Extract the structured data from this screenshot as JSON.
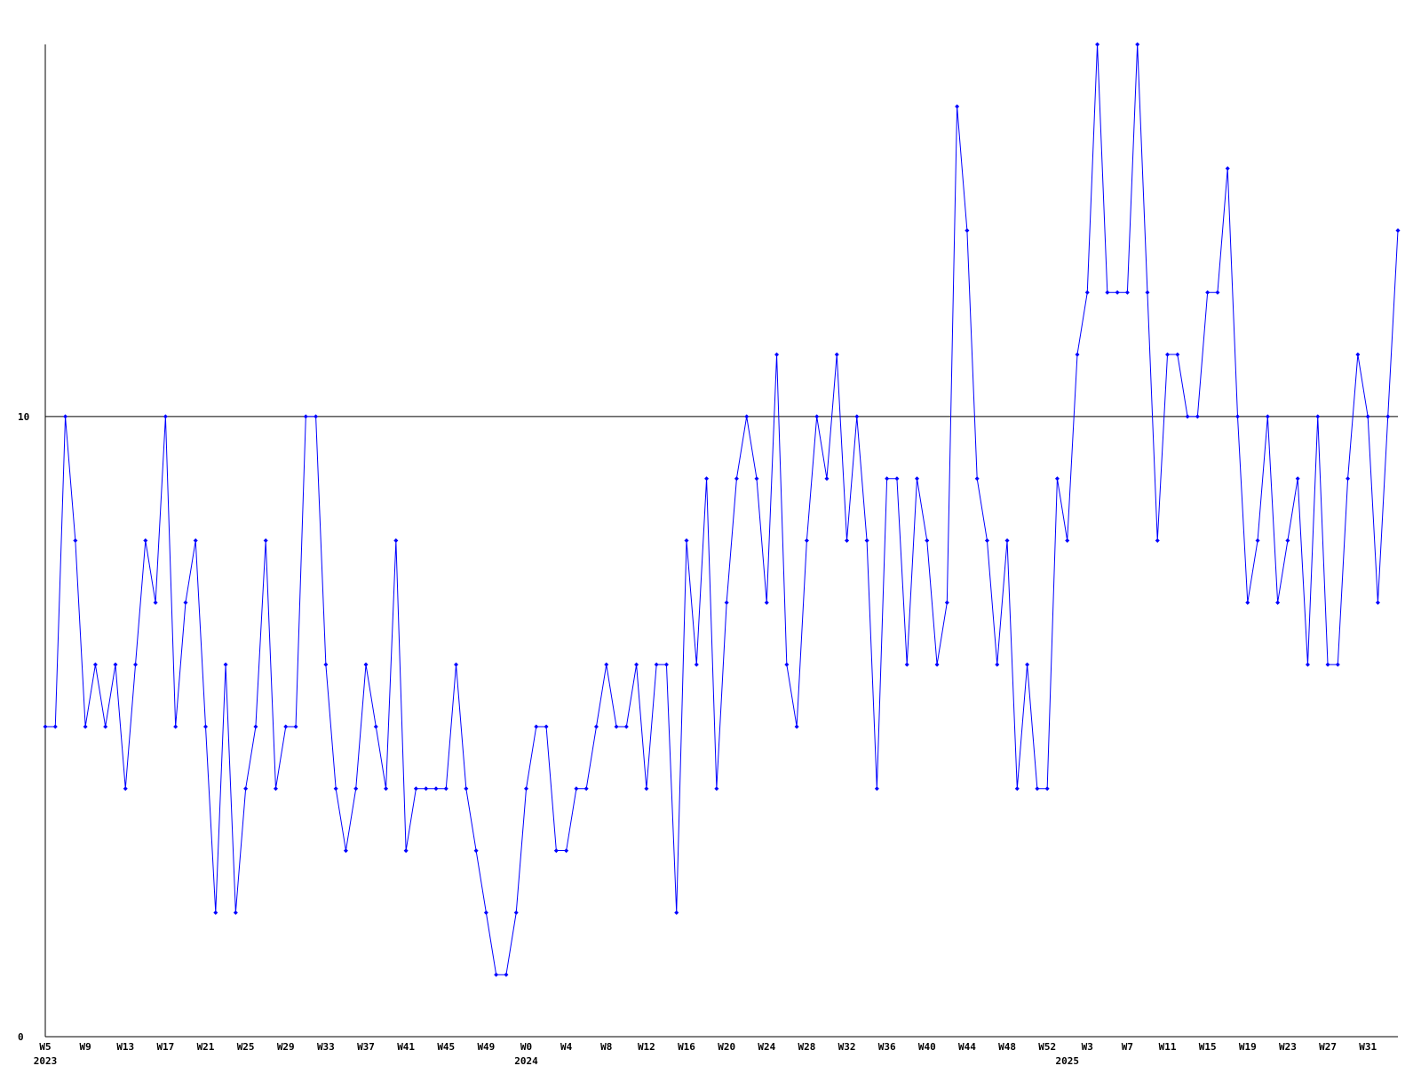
{
  "chart_data": {
    "type": "line",
    "color": "#0000ff",
    "ylim": [
      0,
      16
    ],
    "yticks": [
      0,
      10
    ],
    "grid": true,
    "categories": [
      "W5",
      null,
      null,
      null,
      "W9",
      null,
      null,
      null,
      "W13",
      null,
      null,
      null,
      "W17",
      null,
      null,
      null,
      "W21",
      null,
      null,
      null,
      "W25",
      null,
      null,
      null,
      "W29",
      null,
      null,
      null,
      "W33",
      null,
      null,
      null,
      "W37",
      null,
      null,
      null,
      "W41",
      null,
      null,
      null,
      "W45",
      null,
      null,
      null,
      "W49",
      null,
      null,
      null,
      "W0",
      null,
      null,
      null,
      "W4",
      null,
      null,
      null,
      "W8",
      null,
      null,
      null,
      "W12",
      null,
      null,
      null,
      "W16",
      null,
      null,
      null,
      "W20",
      null,
      null,
      null,
      "W24",
      null,
      null,
      null,
      "W28",
      null,
      null,
      null,
      "W32",
      null,
      null,
      null,
      "W36",
      null,
      null,
      null,
      "W40",
      null,
      null,
      null,
      "W44",
      null,
      null,
      null,
      "W48",
      null,
      null,
      null,
      "W52",
      null,
      null,
      null,
      "W3",
      null,
      null,
      null,
      "W7",
      null,
      null,
      null,
      "W11",
      null,
      null,
      null,
      "W15",
      null,
      null,
      null,
      "W19",
      null,
      null,
      null,
      "W23",
      null,
      null,
      null,
      "W27",
      null,
      null,
      null,
      "W31",
      null,
      null,
      null
    ],
    "years": [
      "2023",
      null,
      null,
      null,
      null,
      null,
      null,
      null,
      null,
      null,
      null,
      null,
      null,
      null,
      null,
      null,
      null,
      null,
      null,
      null,
      null,
      null,
      null,
      null,
      null,
      null,
      null,
      null,
      null,
      null,
      null,
      null,
      null,
      null,
      null,
      null,
      null,
      null,
      null,
      null,
      null,
      null,
      null,
      null,
      null,
      null,
      null,
      null,
      "2024",
      null,
      null,
      null,
      null,
      null,
      null,
      null,
      null,
      null,
      null,
      null,
      null,
      null,
      null,
      null,
      null,
      null,
      null,
      null,
      null,
      null,
      null,
      null,
      null,
      null,
      null,
      null,
      null,
      null,
      null,
      null,
      null,
      null,
      null,
      null,
      null,
      null,
      null,
      null,
      null,
      null,
      null,
      null,
      null,
      null,
      null,
      null,
      null,
      null,
      null,
      null,
      null,
      null,
      "2025",
      null,
      null,
      null,
      null,
      null,
      null,
      null,
      null,
      null,
      null,
      null,
      null,
      null,
      null,
      null,
      null,
      null,
      null,
      null,
      null,
      null,
      null,
      null,
      null,
      null,
      null,
      null,
      null,
      null,
      null,
      null,
      null,
      null,
      null
    ],
    "values": [
      5,
      5,
      10,
      8,
      5,
      6,
      5,
      6,
      4,
      6,
      8,
      7,
      10,
      5,
      7,
      8,
      5,
      2,
      6,
      2,
      4,
      5,
      8,
      4,
      5,
      5,
      10,
      10,
      6,
      4,
      3,
      4,
      6,
      5,
      4,
      8,
      3,
      4,
      4,
      4,
      4,
      6,
      4,
      3,
      2,
      1,
      1,
      2,
      4,
      5,
      5,
      3,
      3,
      4,
      4,
      5,
      6,
      5,
      5,
      6,
      4,
      6,
      6,
      2,
      8,
      6,
      9,
      4,
      7,
      9,
      10,
      9,
      7,
      11,
      6,
      5,
      8,
      10,
      9,
      11,
      8,
      10,
      8,
      4,
      9,
      9,
      6,
      9,
      8,
      6,
      7,
      15,
      13,
      9,
      8,
      6,
      8,
      4,
      6,
      4,
      4,
      9,
      8,
      11,
      12,
      16,
      12,
      12,
      12,
      16,
      12,
      8,
      11,
      11,
      10,
      10,
      12,
      12,
      14,
      10,
      7,
      8,
      10,
      7,
      8,
      9,
      6,
      10,
      6,
      6,
      9,
      11,
      10,
      7,
      10,
      13
    ]
  }
}
